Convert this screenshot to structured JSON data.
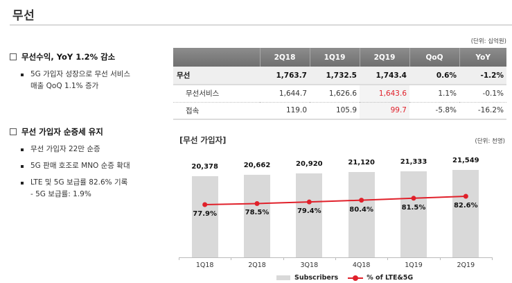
{
  "page": {
    "title": "무선"
  },
  "left": {
    "sections": [
      {
        "heading": "무선수익, YoY 1.2% 감소",
        "bullets": [
          "5G 가입자 성장으로 무선 서비스\n매출 QoQ 1.1% 증가"
        ]
      },
      {
        "heading": "무선 가입자 순증세 유지",
        "bullets": [
          "무선 가입자 22만 순증",
          "5G 판매 호조로 MNO 순증 확대",
          "LTE 및 5G 보급률 82.6% 기록\n- 5G 보급률: 1.9%"
        ]
      }
    ]
  },
  "table": {
    "unit": "(단위: 십억원)",
    "headers": [
      "",
      "2Q18",
      "1Q19",
      "2Q19",
      "QoQ",
      "YoY"
    ],
    "rows": [
      {
        "label": "무선",
        "values": [
          "1,763.7",
          "1,732.5",
          "1,743.4",
          "0.6%",
          "-1.2%"
        ]
      },
      {
        "label": "무선서비스",
        "values": [
          "1,644.7",
          "1,626.6",
          "1,643.6",
          "1.1%",
          "-0.1%"
        ]
      },
      {
        "label": "접속",
        "values": [
          "119.0",
          "105.9",
          "99.7",
          "-5.8%",
          "-16.2%"
        ]
      }
    ],
    "highlight_color": "#e0202a"
  },
  "chart": {
    "title": "[무선 가입자]",
    "unit": "(단위: 천명)",
    "legend": {
      "bars": "Subscribers",
      "line": "% of  LTE&5G"
    }
  },
  "chart_data": {
    "type": "bar",
    "title": "[무선 가입자]",
    "categories": [
      "1Q18",
      "2Q18",
      "3Q18",
      "4Q18",
      "1Q19",
      "2Q19"
    ],
    "series": [
      {
        "name": "Subscribers",
        "type": "bar",
        "unit": "천명",
        "values": [
          20378,
          20662,
          20920,
          21120,
          21333,
          21549
        ],
        "labels": [
          "20,378",
          "20,662",
          "20,920",
          "21,120",
          "21,333",
          "21,549"
        ],
        "color": "#d9d9d9"
      },
      {
        "name": "% of  LTE&5G",
        "type": "line",
        "unit": "%",
        "values": [
          77.9,
          78.5,
          79.4,
          80.4,
          81.5,
          82.6
        ],
        "labels": [
          "77.9%",
          "78.5%",
          "79.4%",
          "80.4%",
          "81.5%",
          "82.6%"
        ],
        "color": "#e0202a"
      }
    ],
    "xlabel": "",
    "ylabel": "",
    "grid": false,
    "legend_position": "bottom"
  }
}
